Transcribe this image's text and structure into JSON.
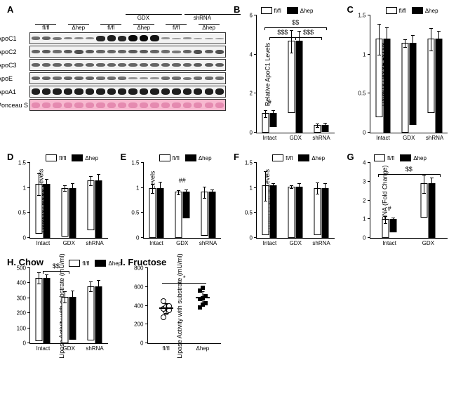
{
  "palette": {
    "flfl_bar": "#ffffff",
    "dhep_bar": "#000000",
    "border": "#000000",
    "ponceau": "#f7b8cf",
    "blot_bg": "#f2f2f2"
  },
  "legend_labels": {
    "flfl": "fl/fl",
    "dhep": "Δhep"
  },
  "panelA": {
    "label": "A",
    "column_groups": [
      "fl/fl",
      "Δhep",
      "GDX fl/fl",
      "GDX Δhep",
      "shRNA fl/fl",
      "shRNA Δhep"
    ],
    "lanes_per_group": 3,
    "rows": [
      {
        "name": "ApoC1",
        "intensities": [
          0.45,
          0.5,
          0.4,
          0.35,
          0.3,
          0.3,
          0.8,
          0.85,
          0.8,
          0.95,
          0.95,
          0.9,
          0.25,
          0.2,
          0.25,
          0.2,
          0.2,
          0.2
        ]
      },
      {
        "name": "ApoC2",
        "intensities": [
          0.5,
          0.55,
          0.45,
          0.55,
          0.6,
          0.55,
          0.5,
          0.5,
          0.5,
          0.55,
          0.55,
          0.5,
          0.45,
          0.4,
          0.5,
          0.6,
          0.55,
          0.6
        ]
      },
      {
        "name": "ApoC3",
        "intensities": [
          0.5,
          0.5,
          0.5,
          0.5,
          0.5,
          0.5,
          0.5,
          0.5,
          0.5,
          0.5,
          0.5,
          0.5,
          0.5,
          0.5,
          0.5,
          0.55,
          0.55,
          0.55
        ]
      },
      {
        "name": "ApoE",
        "intensities": [
          0.5,
          0.5,
          0.45,
          0.5,
          0.5,
          0.5,
          0.45,
          0.45,
          0.45,
          0.25,
          0.25,
          0.25,
          0.45,
          0.45,
          0.4,
          0.45,
          0.45,
          0.45
        ]
      },
      {
        "name": "ApoA1",
        "intensities": [
          0.85,
          0.85,
          0.85,
          0.85,
          0.85,
          0.85,
          0.85,
          0.85,
          0.85,
          0.85,
          0.85,
          0.85,
          0.85,
          0.85,
          0.85,
          0.85,
          0.85,
          0.85
        ]
      },
      {
        "name": "Ponceau S",
        "ponceau": true,
        "intensities": [
          0.8,
          0.8,
          0.8,
          0.8,
          0.8,
          0.8,
          0.8,
          0.8,
          0.8,
          0.8,
          0.8,
          0.8,
          0.8,
          0.8,
          0.8,
          0.8,
          0.8,
          0.8
        ]
      }
    ]
  },
  "bar_categories": [
    "Intact",
    "GDX",
    "shRNA"
  ],
  "panelB": {
    "label": "B",
    "ylabel": "Relative ApoC1 Levels",
    "ylim": [
      0,
      6
    ],
    "yticks": [
      0,
      2,
      4,
      6
    ],
    "data": {
      "Intact": {
        "flfl": {
          "mean": 1.0,
          "err": 0.2
        },
        "dhep": {
          "mean": 0.7,
          "err": 0.15
        }
      },
      "GDX": {
        "flfl": {
          "mean": 3.7,
          "err": 0.6
        },
        "dhep": {
          "mean": 4.7,
          "err": 0.5
        }
      },
      "shRNA": {
        "flfl": {
          "mean": 0.4,
          "err": 0.1
        },
        "dhep": {
          "mean": 0.35,
          "err": 0.1
        }
      }
    },
    "annotations": [
      {
        "text": "#",
        "over": "Intact",
        "y": 1.3
      },
      {
        "text": "$$",
        "yline": 5.4,
        "span": "all"
      },
      {
        "text": "$$$",
        "yline": 4.9,
        "span": "left"
      },
      {
        "text": "$$$",
        "yline": 4.9,
        "span": "right"
      }
    ]
  },
  "panelC": {
    "label": "C",
    "ylabel": "Relative ApoC2 Levels",
    "ylim": [
      0,
      1.5
    ],
    "yticks": [
      0,
      0.5,
      1.0,
      1.5
    ],
    "data": {
      "Intact": {
        "flfl": {
          "mean": 1.0,
          "err": 0.2
        },
        "dhep": {
          "mean": 1.2,
          "err": 0.15
        }
      },
      "GDX": {
        "flfl": {
          "mean": 1.15,
          "err": 0.05
        },
        "dhep": {
          "mean": 1.05,
          "err": 0.1
        }
      },
      "shRNA": {
        "flfl": {
          "mean": 0.95,
          "err": 0.15
        },
        "dhep": {
          "mean": 1.2,
          "err": 0.1
        }
      }
    }
  },
  "panelD": {
    "label": "D",
    "ylabel": "Relative ApoC3 Levels",
    "ylim": [
      0,
      1.5
    ],
    "yticks": [
      0,
      0.5,
      1.0,
      1.5
    ],
    "data": {
      "Intact": {
        "flfl": {
          "mean": 1.0,
          "err": 0.22
        },
        "dhep": {
          "mean": 1.08,
          "err": 0.1
        }
      },
      "GDX": {
        "flfl": {
          "mean": 0.97,
          "err": 0.06
        },
        "dhep": {
          "mean": 1.0,
          "err": 0.1
        }
      },
      "shRNA": {
        "flfl": {
          "mean": 1.0,
          "err": 0.1
        },
        "dhep": {
          "mean": 1.15,
          "err": 0.12
        }
      }
    }
  },
  "panelE": {
    "label": "E",
    "ylabel": "Relative ApoE Levels",
    "ylim": [
      0,
      1.5
    ],
    "yticks": [
      0,
      0.5,
      1.0,
      1.5
    ],
    "data": {
      "Intact": {
        "flfl": {
          "mean": 1.0,
          "err": 0.1
        },
        "dhep": {
          "mean": 1.0,
          "err": 0.12
        }
      },
      "GDX": {
        "flfl": {
          "mean": 0.92,
          "err": 0.05
        },
        "dhep": {
          "mean": 0.53,
          "err": 0.05
        }
      },
      "shRNA": {
        "flfl": {
          "mean": 0.88,
          "err": 0.12
        },
        "dhep": {
          "mean": 0.92,
          "err": 0.05
        }
      }
    },
    "annotations": [
      {
        "text": "##",
        "over": "GDX",
        "y": 1.05
      }
    ]
  },
  "panelF": {
    "label": "F",
    "ylabel": "Relative ApoA1 Levels",
    "ylim": [
      0,
      1.5
    ],
    "yticks": [
      0,
      0.5,
      1.0,
      1.5
    ],
    "data": {
      "Intact": {
        "flfl": {
          "mean": 1.0,
          "err": 0.3
        },
        "dhep": {
          "mean": 1.05,
          "err": 0.05
        }
      },
      "GDX": {
        "flfl": {
          "mean": 1.03,
          "err": 0.04
        },
        "dhep": {
          "mean": 1.03,
          "err": 0.06
        }
      },
      "shRNA": {
        "flfl": {
          "mean": 0.95,
          "err": 0.12
        },
        "dhep": {
          "mean": 1.0,
          "err": 0.1
        }
      }
    }
  },
  "panelG": {
    "label": "G",
    "ylabel": "AR mRNA (Fold Change)",
    "ylim": [
      0,
      4
    ],
    "yticks": [
      0,
      1,
      2,
      3,
      4
    ],
    "data": {
      "Intact": {
        "flfl": {
          "mean": 1.0,
          "err": 0.2
        },
        "dhep": {
          "mean": 0.7,
          "err": 0.1
        }
      },
      "GDX": {
        "flfl": {
          "mean": 1.8,
          "err": 0.5
        },
        "dhep": {
          "mean": 2.9,
          "err": 0.3
        }
      }
    },
    "categories": [
      "Intact",
      "GDX"
    ],
    "annotations": [
      {
        "text": "#",
        "over": "Intact",
        "y": 1.3
      },
      {
        "text": "$$",
        "yline": 3.4,
        "span": "all"
      }
    ]
  },
  "panelH": {
    "label": "H. Chow",
    "ylabel": "Lipase Activity\nwith substrate (mU/ml)",
    "ylim": [
      0,
      500
    ],
    "yticks": [
      0,
      100,
      200,
      300,
      400,
      500
    ],
    "data": {
      "Intact": {
        "flfl": {
          "mean": 420,
          "err": 40
        },
        "dhep": {
          "mean": 435,
          "err": 25
        }
      },
      "GDX": {
        "flfl": {
          "mean": 310,
          "err": 40
        },
        "dhep": {
          "mean": 285,
          "err": 40
        }
      },
      "shRNA": {
        "flfl": {
          "mean": 360,
          "err": 35
        },
        "dhep": {
          "mean": 380,
          "err": 40
        }
      }
    },
    "annotations": [
      {
        "text": "$$",
        "yline": 480,
        "span": "left"
      }
    ]
  },
  "panelI": {
    "label": "I. Fructose",
    "ylabel": "Lipase Activity\nwith substrate (mU/ml)",
    "ylim": [
      0,
      800
    ],
    "yticks": [
      0,
      200,
      400,
      600,
      800
    ],
    "xcats": [
      "fl/fl",
      "Δhep"
    ],
    "points": {
      "flfl": [
        280,
        330,
        350,
        370,
        390,
        400,
        450
      ],
      "dhep": [
        380,
        410,
        430,
        470,
        480,
        500,
        560,
        590
      ]
    },
    "means": {
      "flfl": {
        "mean": 370,
        "err": 55
      },
      "dhep": {
        "mean": 480,
        "err": 70
      }
    },
    "annotations": [
      {
        "text": "*",
        "yline": 640,
        "span": "all"
      }
    ]
  }
}
